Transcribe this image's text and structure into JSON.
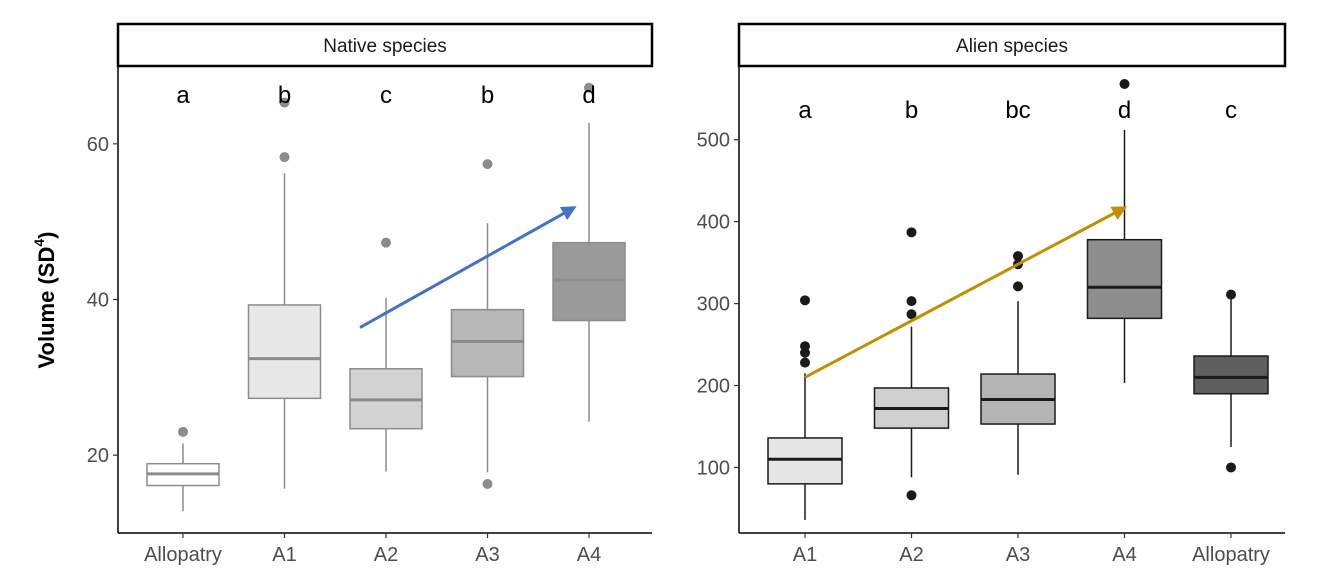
{
  "chart_data": [
    {
      "type": "box",
      "panel_title": "Native species",
      "ylabel": "Volume",
      "ylabel_unit_base": "SD",
      "ylabel_unit_exp": "4",
      "ylim": [
        10,
        70
      ],
      "yticks": [
        20,
        40,
        60
      ],
      "categories": [
        "Allopatry",
        "A1",
        "A2",
        "A3",
        "A4"
      ],
      "letters": [
        "a",
        "b",
        "c",
        "b",
        "d"
      ],
      "fill_colors": [
        "#ffffff",
        "#e8e8e8",
        "#d2d2d2",
        "#b7b7b7",
        "#9a9a9a"
      ],
      "line_color": "#8c8c8c",
      "boxes": [
        {
          "min": 12.8,
          "q1": 16.1,
          "median": 17.6,
          "q3": 18.9,
          "max": 21.5,
          "outliers": [
            23.0
          ]
        },
        {
          "min": 15.7,
          "q1": 27.3,
          "median": 32.4,
          "q3": 39.3,
          "max": 56.2,
          "outliers": [
            58.3,
            65.3
          ]
        },
        {
          "min": 17.9,
          "q1": 23.4,
          "median": 27.1,
          "q3": 31.1,
          "max": 40.2,
          "outliers": [
            47.3
          ]
        },
        {
          "min": 17.8,
          "q1": 30.1,
          "median": 34.6,
          "q3": 38.7,
          "max": 49.8,
          "outliers": [
            16.3,
            57.4
          ]
        },
        {
          "min": 24.3,
          "q1": 37.3,
          "median": 42.5,
          "q3": 47.3,
          "max": 62.7,
          "outliers": [
            67.2
          ]
        }
      ],
      "trend_arrow": {
        "from": {
          "category": "A2",
          "value": 36.4
        },
        "to": {
          "category": "A4",
          "value": 51.8
        },
        "color": "#4472c4"
      }
    },
    {
      "type": "box",
      "panel_title": "Alien species",
      "ylim": [
        20,
        590
      ],
      "yticks": [
        100,
        200,
        300,
        400,
        500
      ],
      "categories": [
        "A1",
        "A2",
        "A3",
        "A4",
        "Allopatry"
      ],
      "letters": [
        "a",
        "b",
        "bc",
        "d",
        "c"
      ],
      "fill_colors": [
        "#e6e6e6",
        "#cfcfcf",
        "#b4b4b4",
        "#8e8e8e",
        "#5f5f5f"
      ],
      "line_color": "#1a1a1a",
      "boxes": [
        {
          "min": 36,
          "q1": 80,
          "median": 110,
          "q3": 136,
          "max": 215,
          "outliers": [
            228,
            240,
            248,
            304
          ]
        },
        {
          "min": 88,
          "q1": 148,
          "median": 172,
          "q3": 197,
          "max": 272,
          "outliers": [
            66,
            287,
            303,
            387
          ]
        },
        {
          "min": 91,
          "q1": 153,
          "median": 183,
          "q3": 214,
          "max": 303,
          "outliers": [
            321,
            348,
            358
          ]
        },
        {
          "min": 203,
          "q1": 282,
          "median": 320,
          "q3": 378,
          "max": 512,
          "outliers": [
            568
          ]
        },
        {
          "min": 125,
          "q1": 190,
          "median": 210,
          "q3": 236,
          "max": 305,
          "outliers": [
            100,
            311
          ]
        }
      ],
      "trend_arrow": {
        "from": {
          "category": "A1",
          "value": 210
        },
        "to": {
          "category": "A4",
          "value": 417
        },
        "color": "#bf9000"
      }
    }
  ]
}
